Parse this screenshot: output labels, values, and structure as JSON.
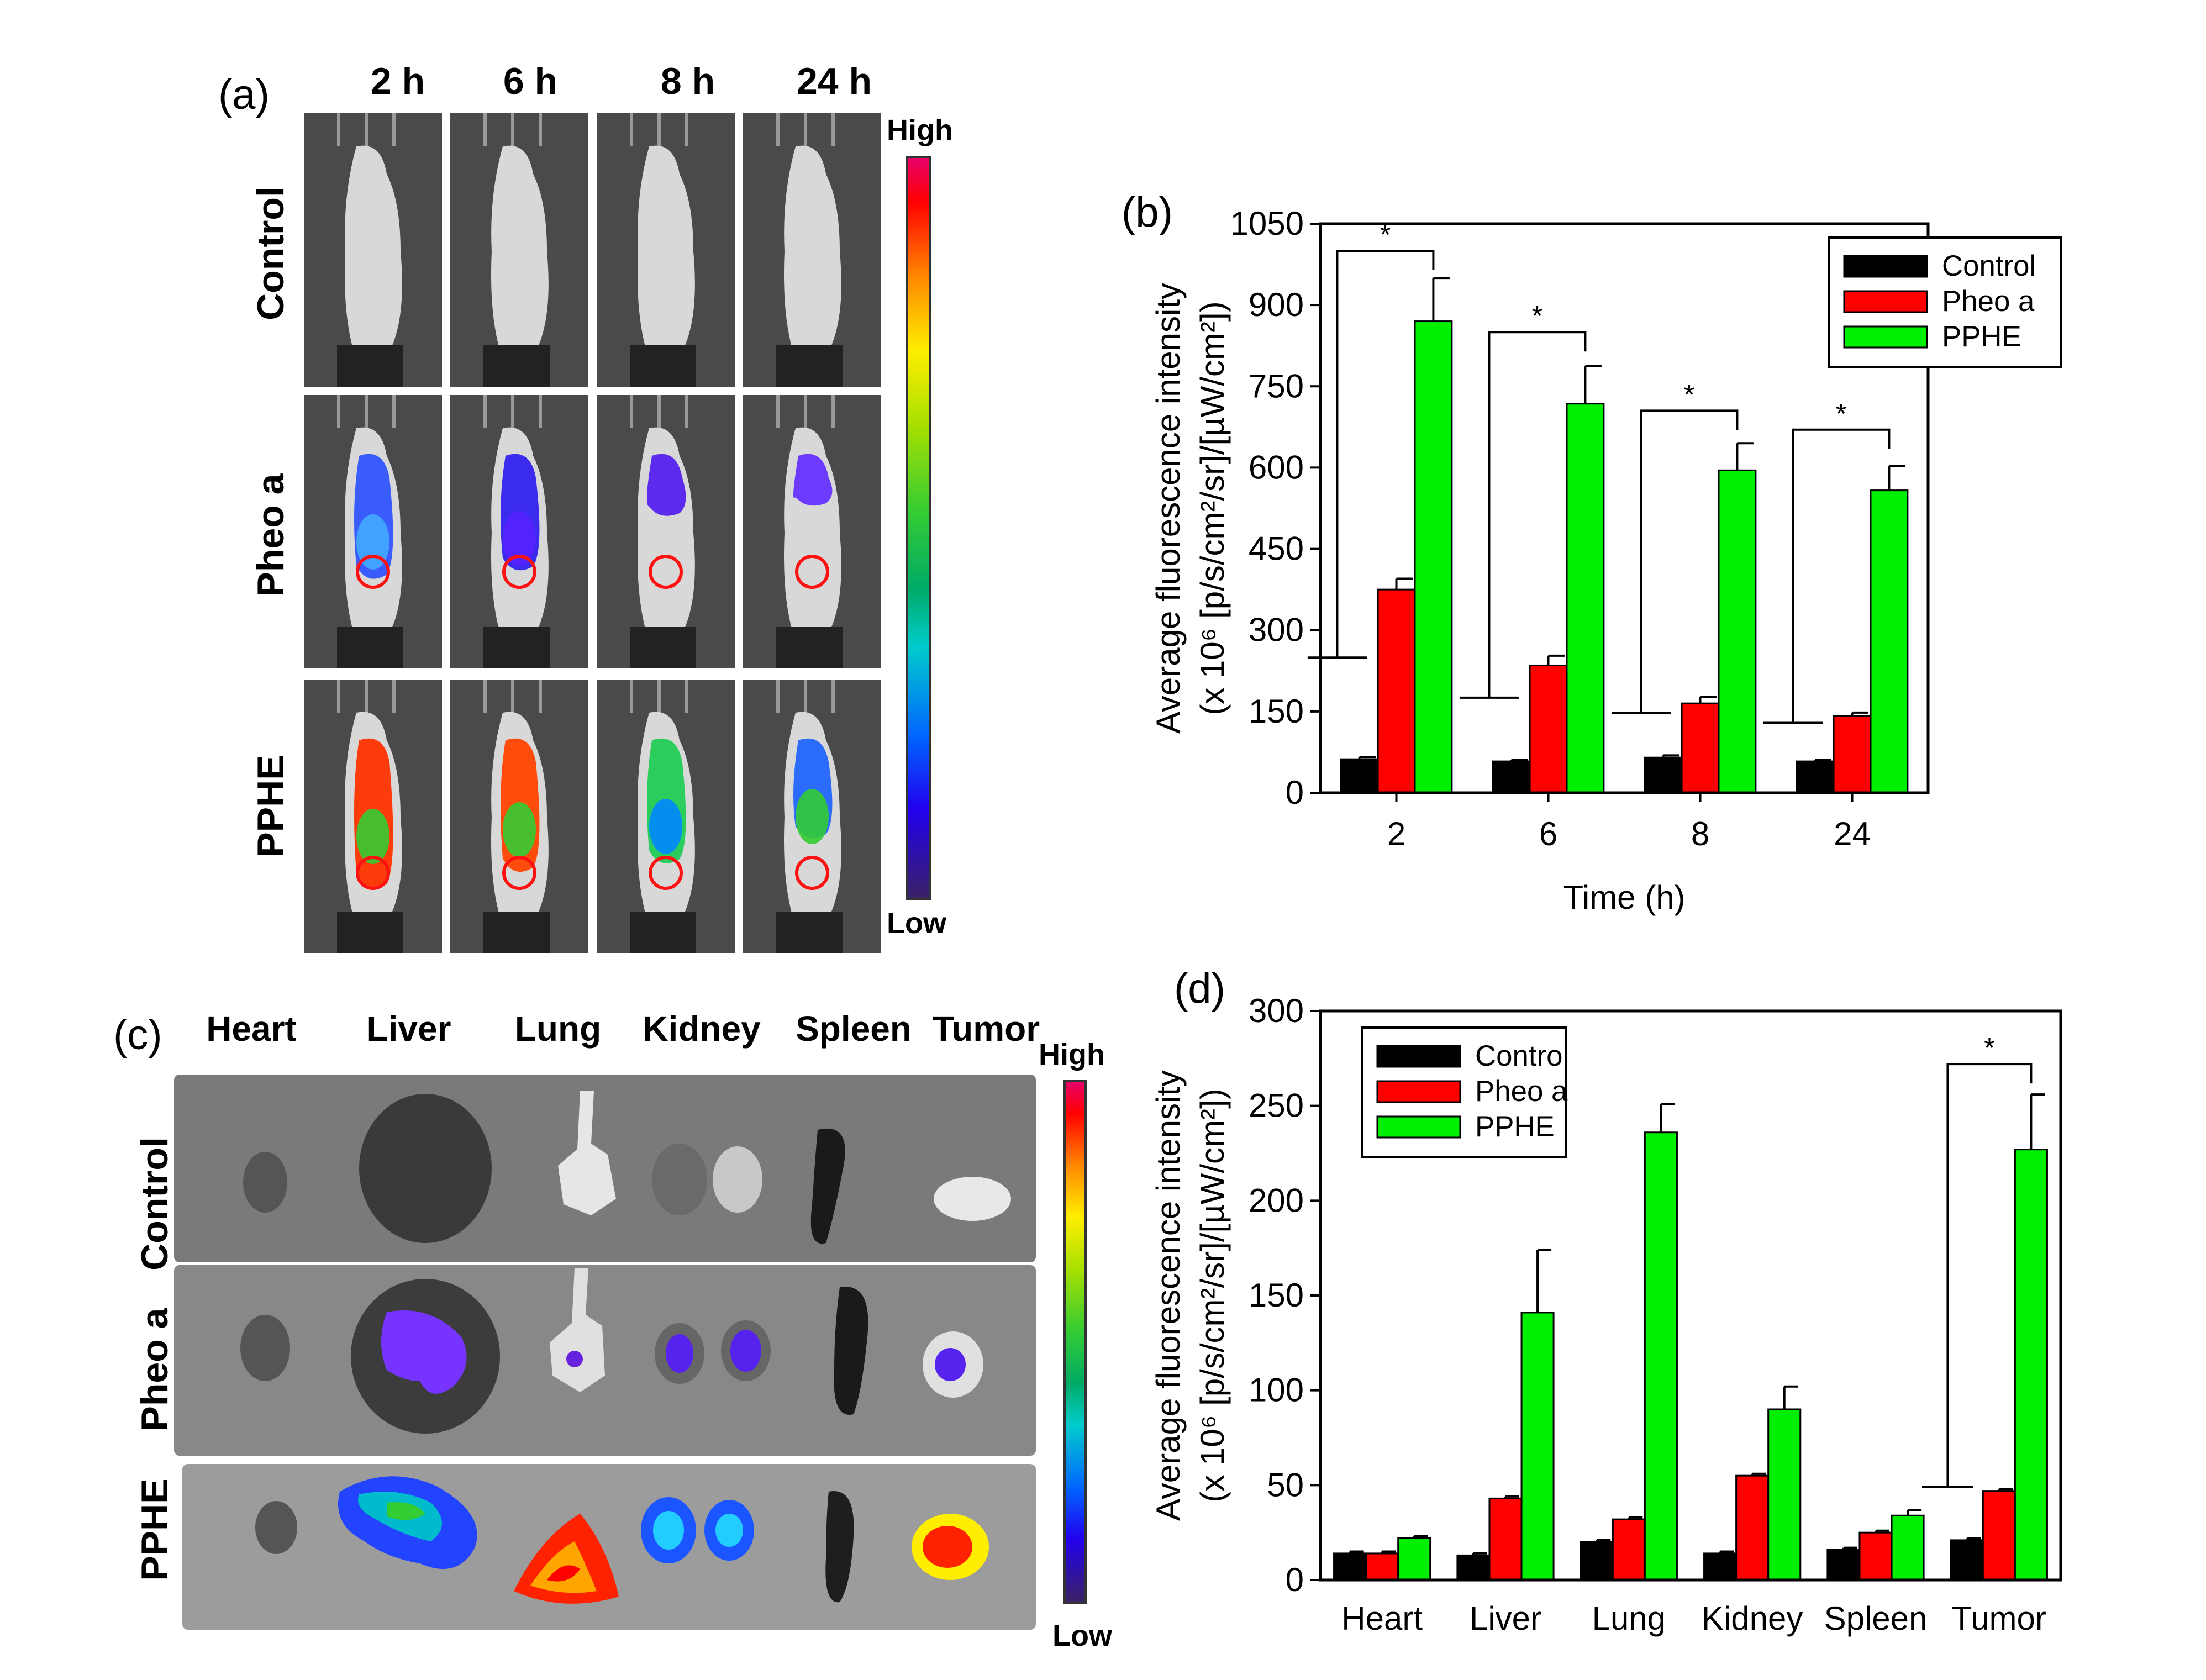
{
  "panel_a": {
    "label": "(a)",
    "times": [
      "2 h",
      "6 h",
      "8 h",
      "24 h"
    ],
    "rows": [
      "Control",
      "Pheo a",
      "PPHE"
    ],
    "colorbar": {
      "high": "High",
      "low": "Low"
    }
  },
  "panel_c": {
    "label": "(c)",
    "organs": [
      "Heart",
      "Liver",
      "Lung",
      "Kidney",
      "Spleen",
      "Tumor"
    ],
    "rows": [
      "Control",
      "Pheo a",
      "PPHE"
    ],
    "colorbar": {
      "high": "High",
      "low": "Low"
    }
  },
  "colors": {
    "control": "#000000",
    "pheo_a": "#ff0000",
    "pphe": "#00ee00"
  },
  "chart_data": [
    {
      "id": "b",
      "panel_label": "(b)",
      "type": "bar",
      "xlabel": "Time (h)",
      "ylabel_line1": "Average fluorescence intensity",
      "ylabel_line2": "(x 10^6 [p/s/cm^2/sr]/[µW/cm^2])",
      "ylim": [
        0,
        1050
      ],
      "yticks": [
        0,
        150,
        300,
        450,
        600,
        750,
        900,
        1050
      ],
      "categories": [
        "2",
        "6",
        "8",
        "24"
      ],
      "legend": "top-right",
      "series": [
        {
          "name": "Control",
          "values": [
            62,
            58,
            65,
            58
          ],
          "errors": [
            4,
            3,
            4,
            3
          ]
        },
        {
          "name": "Pheo a",
          "values": [
            375,
            235,
            165,
            142
          ],
          "errors": [
            20,
            18,
            12,
            6
          ]
        },
        {
          "name": "PPHE",
          "values": [
            870,
            718,
            595,
            558
          ],
          "errors": [
            80,
            70,
            50,
            45
          ]
        }
      ],
      "significance": [
        {
          "category": "2",
          "label": "*",
          "bracket_level": 1000
        },
        {
          "category": "6",
          "label": "*",
          "bracket_level": 850
        },
        {
          "category": "8",
          "label": "*",
          "bracket_level": 705
        },
        {
          "category": "24",
          "label": "*",
          "bracket_level": 670
        }
      ]
    },
    {
      "id": "d",
      "panel_label": "(d)",
      "type": "bar",
      "xlabel": "",
      "ylabel_line1": "Average fluorescence intensity",
      "ylabel_line2": "(x 10^6 [p/s/cm^2/sr]/[µW/cm^2])",
      "ylim": [
        0,
        300
      ],
      "yticks": [
        0,
        50,
        100,
        150,
        200,
        250,
        300
      ],
      "categories": [
        "Heart",
        "Liver",
        "Lung",
        "Kidney",
        "Spleen",
        "Tumor"
      ],
      "legend": "top-left",
      "series": [
        {
          "name": "Control",
          "values": [
            14,
            13,
            20,
            14,
            16,
            21
          ],
          "errors": [
            1,
            1,
            1,
            1,
            1,
            1
          ]
        },
        {
          "name": "Pheo a",
          "values": [
            14,
            43,
            32,
            55,
            25,
            47
          ],
          "errors": [
            1,
            1,
            1,
            1,
            1,
            1
          ]
        },
        {
          "name": "PPHE",
          "values": [
            22,
            141,
            236,
            90,
            34,
            227
          ],
          "errors": [
            1,
            33,
            15,
            12,
            3,
            29
          ]
        }
      ],
      "significance": [
        {
          "category": "Tumor",
          "label": "*",
          "bracket_level": 272
        }
      ]
    }
  ]
}
